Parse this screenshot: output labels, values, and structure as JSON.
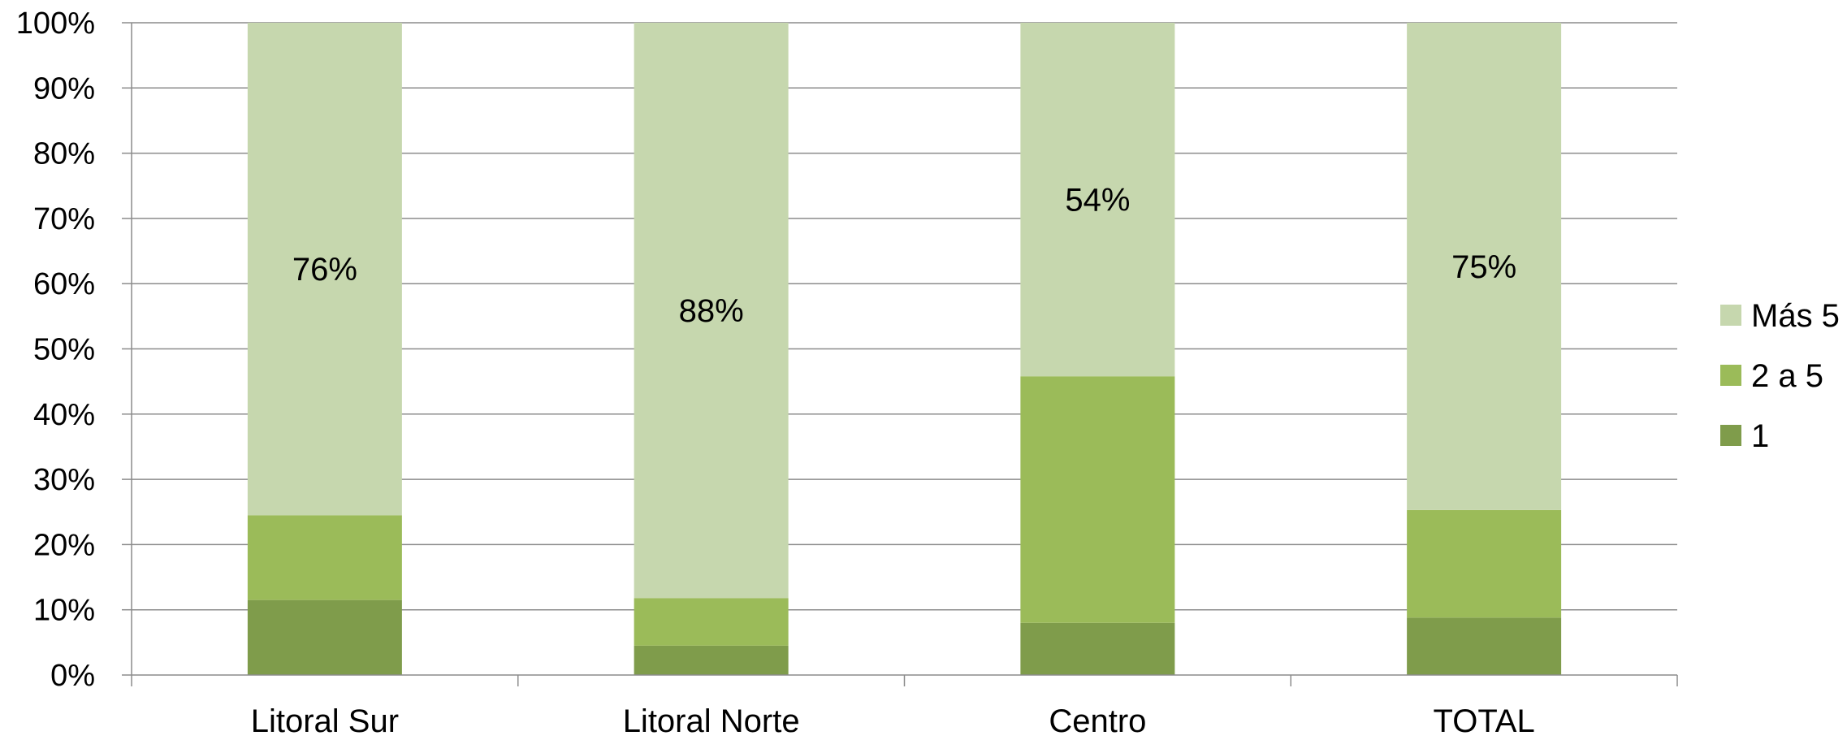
{
  "chart_data": {
    "type": "bar",
    "stacked": true,
    "normalized": true,
    "categories": [
      "Litoral Sur",
      "Litoral Norte",
      "Centro",
      "TOTAL"
    ],
    "series": [
      {
        "name": "1",
        "values": [
          11.5,
          4.5,
          8.0,
          8.8
        ],
        "color": "#7f9c4b"
      },
      {
        "name": "2 a 5",
        "values": [
          13.0,
          7.3,
          37.8,
          16.5
        ],
        "color": "#9bbb59"
      },
      {
        "name": "Más 5",
        "values": [
          75.5,
          88.2,
          54.2,
          74.7
        ],
        "color": "#c6d7ae"
      }
    ],
    "data_labels": {
      "series": "Más 5",
      "texts": [
        "76%",
        "88%",
        "54%",
        "75%"
      ]
    },
    "y_ticks": [
      "0%",
      "10%",
      "20%",
      "30%",
      "40%",
      "50%",
      "60%",
      "70%",
      "80%",
      "90%",
      "100%"
    ],
    "ylim": [
      0,
      100
    ],
    "grid": true,
    "legend_position": "right",
    "legend_order": [
      "Más 5",
      "2 a 5",
      "1"
    ],
    "gridline_color": "#8c8c8c",
    "axis_color": "#8c8c8c"
  }
}
